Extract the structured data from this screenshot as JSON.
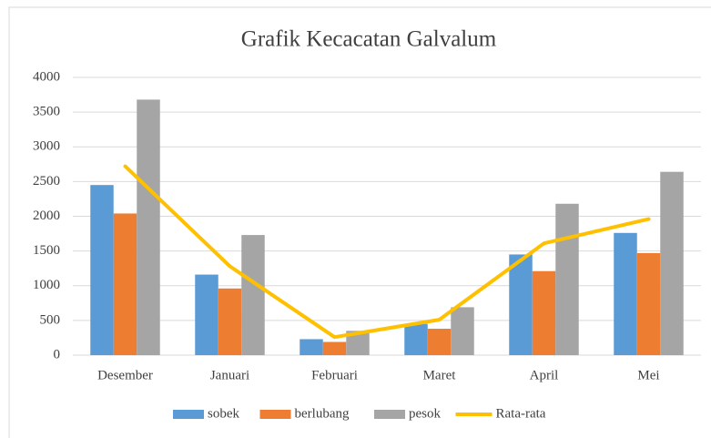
{
  "chart_data": {
    "type": "bar",
    "title": "Grafik Kecacatan Galvalum",
    "categories": [
      "Desember",
      "Januari",
      "Februari",
      "Maret",
      "April",
      "Mei"
    ],
    "series": [
      {
        "name": "sobek",
        "color": "#5b9bd5",
        "values": [
          2450,
          1160,
          230,
          450,
          1450,
          1760
        ]
      },
      {
        "name": "berlubang",
        "color": "#ed7d31",
        "values": [
          2040,
          960,
          190,
          380,
          1210,
          1470
        ]
      },
      {
        "name": "pesok",
        "color": "#a5a5a5",
        "values": [
          3680,
          1730,
          350,
          690,
          2180,
          2640
        ]
      },
      {
        "name": "Rata-rata",
        "color": "#ffc000",
        "type": "line",
        "values": [
          2720,
          1280,
          260,
          510,
          1610,
          1960
        ]
      }
    ],
    "ylim": [
      0,
      4000
    ],
    "yticks": [
      0,
      500,
      1000,
      1500,
      2000,
      2500,
      3000,
      3500,
      4000
    ],
    "grid": true,
    "legend": "bottom"
  }
}
